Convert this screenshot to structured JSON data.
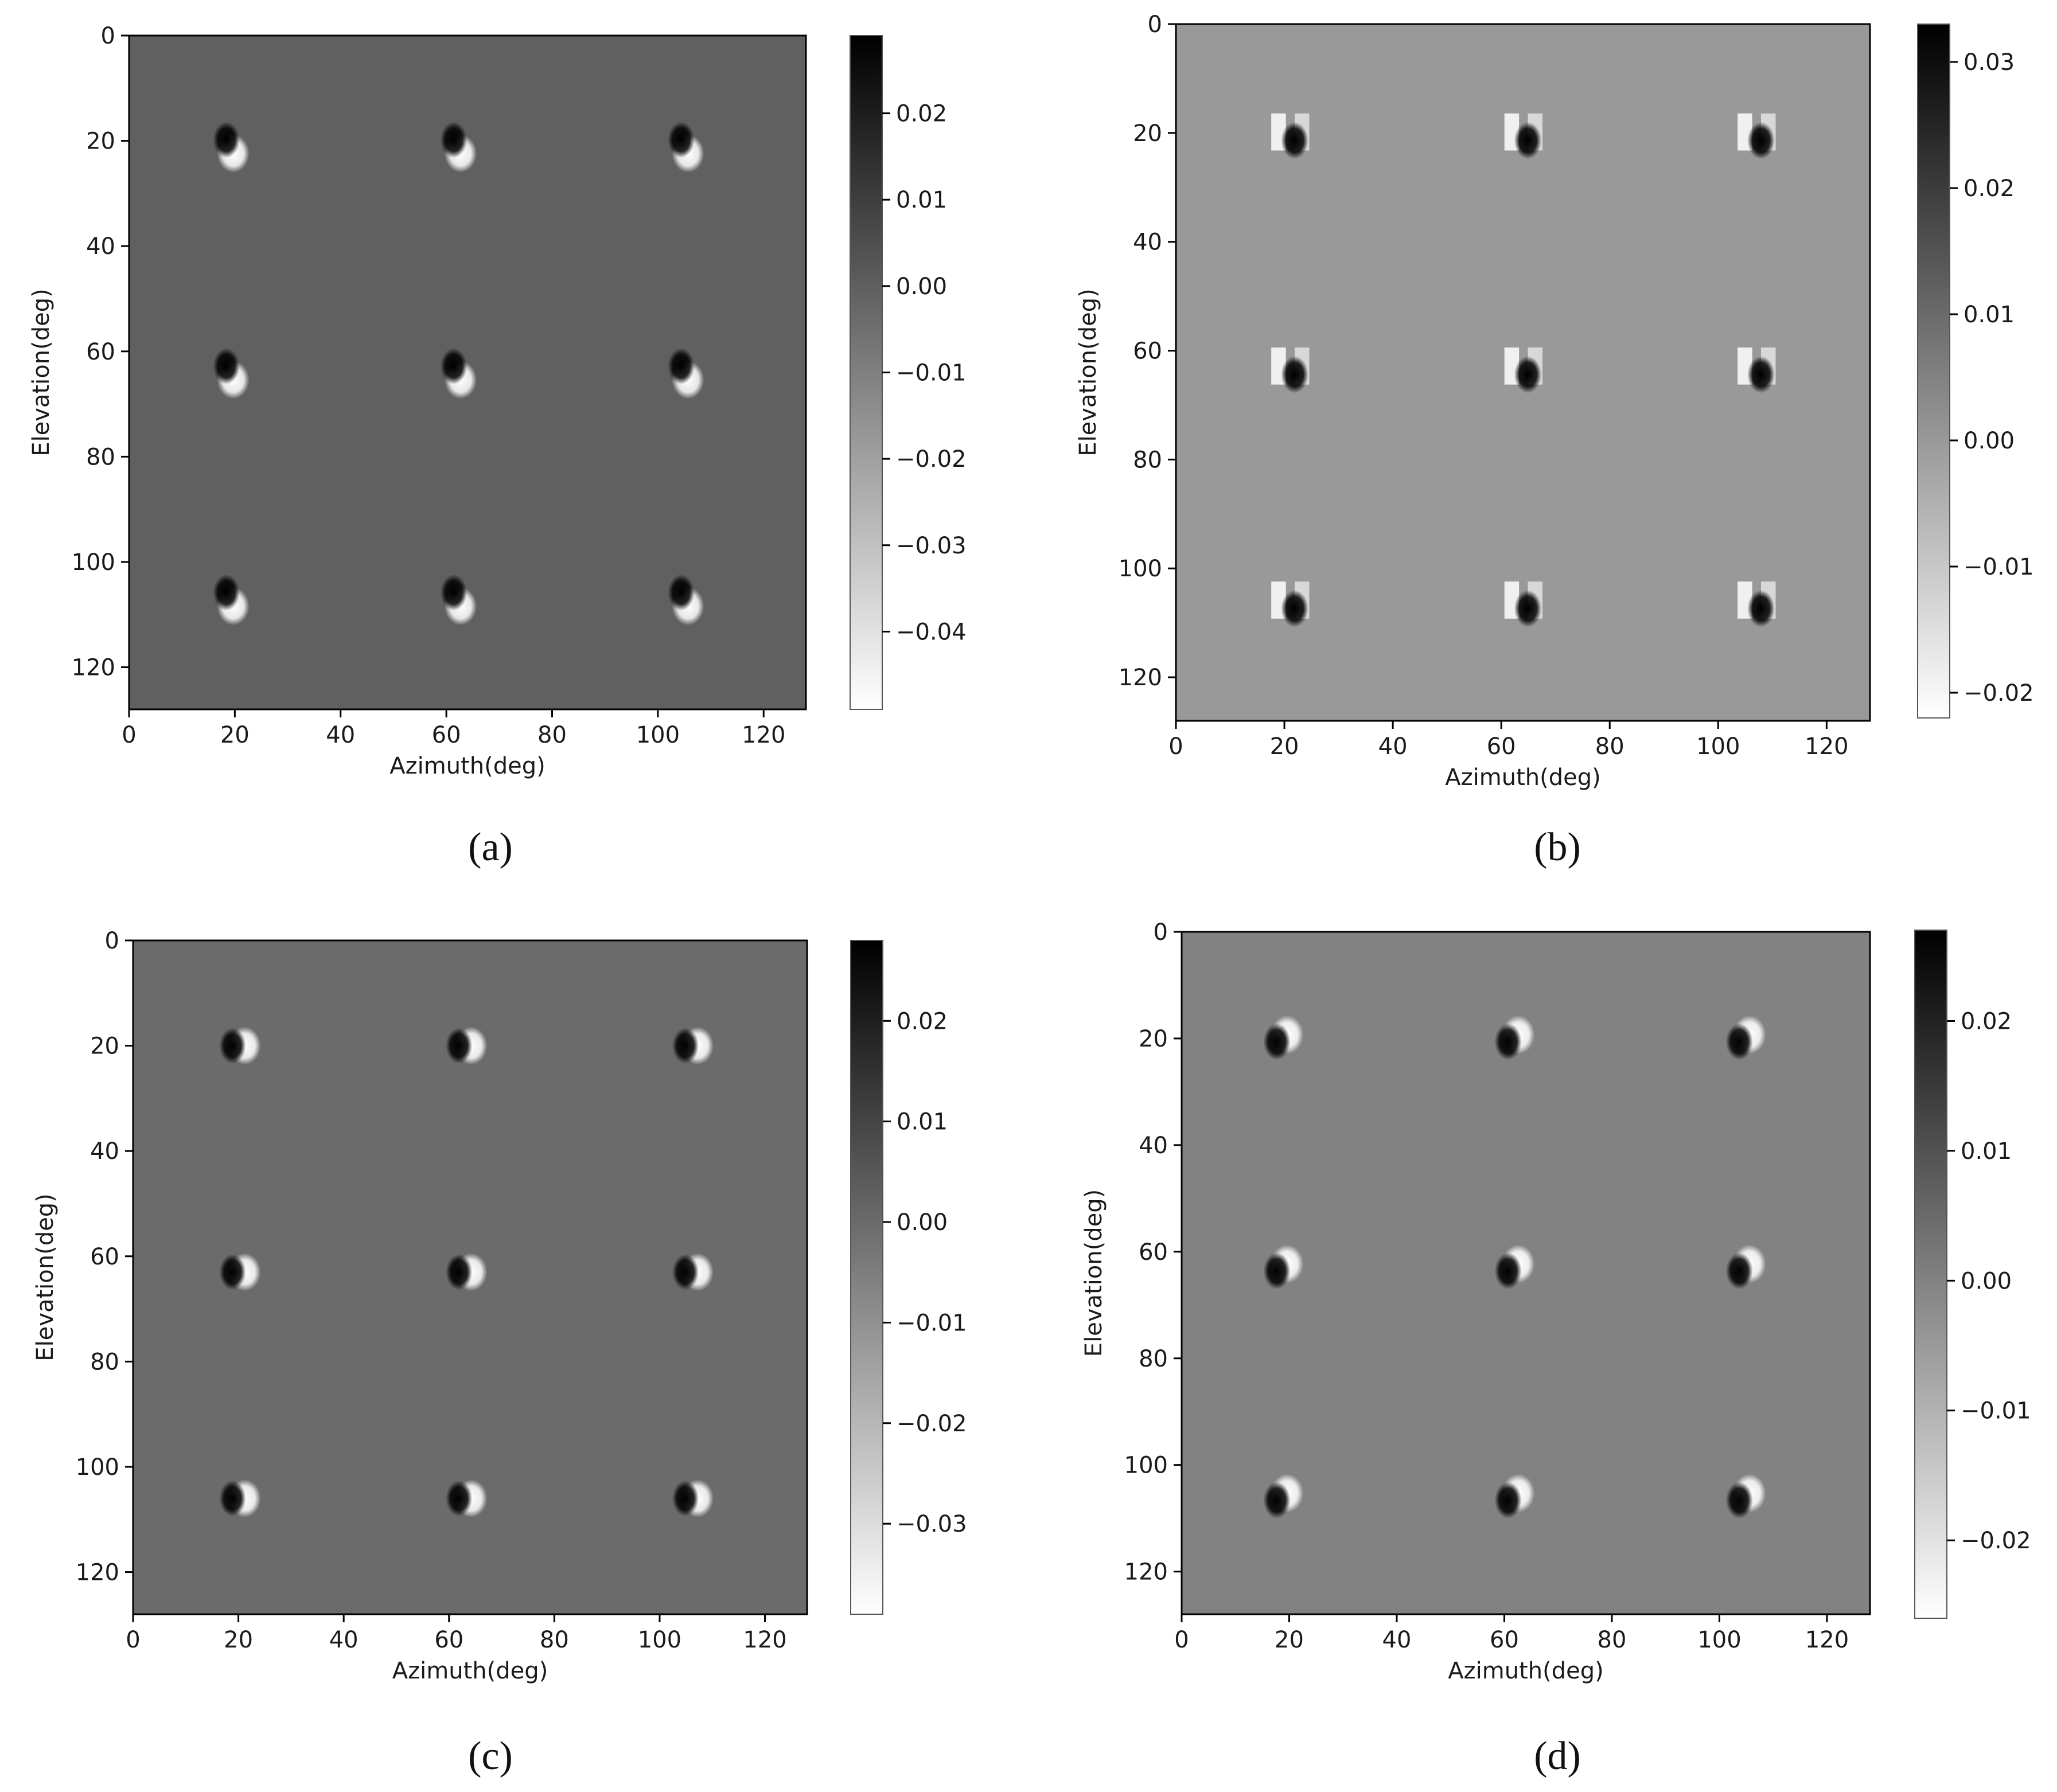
{
  "chart_data": [
    {
      "type": "heatmap",
      "panel_label": "(a)",
      "xlabel": "Azimuth(deg)",
      "ylabel": "Elevation(deg)",
      "xlim": [
        0,
        128
      ],
      "ylim": [
        128,
        0
      ],
      "x_ticks": [
        "0",
        "20",
        "40",
        "60",
        "80",
        "100",
        "120"
      ],
      "y_ticks": [
        "0",
        "20",
        "40",
        "60",
        "80",
        "100",
        "120"
      ],
      "background_value": -0.0005,
      "pattern": "dark-top-left, light-bottom-right",
      "sources": [
        {
          "az": 19,
          "el": 21
        },
        {
          "az": 62,
          "el": 21
        },
        {
          "az": 105,
          "el": 21
        },
        {
          "az": 19,
          "el": 64
        },
        {
          "az": 62,
          "el": 64
        },
        {
          "az": 105,
          "el": 64
        },
        {
          "az": 19,
          "el": 107
        },
        {
          "az": 62,
          "el": 107
        },
        {
          "az": 105,
          "el": 107
        }
      ],
      "colorbar": {
        "min": -0.049,
        "max": 0.029,
        "tick_values": [
          0.02,
          0.01,
          0.0,
          -0.01,
          -0.02,
          -0.03,
          -0.04
        ],
        "tick_labels": [
          "0.02",
          "0.01",
          "0.00",
          "−0.01",
          "−0.02",
          "−0.03",
          "−0.04"
        ],
        "colormap": "gray_r"
      }
    },
    {
      "type": "heatmap",
      "panel_label": "(b)",
      "xlabel": "Azimuth(deg)",
      "ylabel": "Elevation(deg)",
      "xlim": [
        0,
        128
      ],
      "ylim": [
        128,
        0
      ],
      "x_ticks": [
        "0",
        "20",
        "40",
        "60",
        "80",
        "100",
        "120"
      ],
      "y_ticks": [
        "0",
        "20",
        "40",
        "60",
        "80",
        "100",
        "120"
      ],
      "background_value": 0.0,
      "pattern": "light-left, dark-bottom-right",
      "sources": [
        {
          "az": 21,
          "el": 20
        },
        {
          "az": 64,
          "el": 20
        },
        {
          "az": 107,
          "el": 20
        },
        {
          "az": 21,
          "el": 63
        },
        {
          "az": 64,
          "el": 63
        },
        {
          "az": 107,
          "el": 63
        },
        {
          "az": 21,
          "el": 106
        },
        {
          "az": 64,
          "el": 106
        },
        {
          "az": 107,
          "el": 106
        }
      ],
      "colorbar": {
        "min": -0.022,
        "max": 0.033,
        "tick_values": [
          0.03,
          0.02,
          0.01,
          0.0,
          -0.01,
          -0.02
        ],
        "tick_labels": [
          "0.03",
          "0.02",
          "0.01",
          "0.00",
          "−0.01",
          "−0.02"
        ],
        "colormap": "gray_r"
      }
    },
    {
      "type": "heatmap",
      "panel_label": "(c)",
      "xlabel": "Azimuth(deg)",
      "ylabel": "Elevation(deg)",
      "xlim": [
        0,
        128
      ],
      "ylim": [
        128,
        0
      ],
      "x_ticks": [
        "0",
        "20",
        "40",
        "60",
        "80",
        "100",
        "120"
      ],
      "y_ticks": [
        "0",
        "20",
        "40",
        "60",
        "80",
        "100",
        "120"
      ],
      "background_value": 0.0,
      "pattern": "dark-left, light-right",
      "sources": [
        {
          "az": 20,
          "el": 20
        },
        {
          "az": 63,
          "el": 20
        },
        {
          "az": 106,
          "el": 20
        },
        {
          "az": 20,
          "el": 63
        },
        {
          "az": 63,
          "el": 63
        },
        {
          "az": 106,
          "el": 63
        },
        {
          "az": 20,
          "el": 106
        },
        {
          "az": 63,
          "el": 106
        },
        {
          "az": 106,
          "el": 106
        }
      ],
      "colorbar": {
        "min": -0.039,
        "max": 0.028,
        "tick_values": [
          0.02,
          0.01,
          0.0,
          -0.01,
          -0.02,
          -0.03
        ],
        "tick_labels": [
          "0.02",
          "0.01",
          "0.00",
          "−0.01",
          "−0.02",
          "−0.03"
        ],
        "colormap": "gray_r"
      }
    },
    {
      "type": "heatmap",
      "panel_label": "(d)",
      "xlabel": "Azimuth(deg)",
      "ylabel": "Elevation(deg)",
      "xlim": [
        0,
        128
      ],
      "ylim": [
        128,
        0
      ],
      "x_ticks": [
        "0",
        "20",
        "40",
        "60",
        "80",
        "100",
        "120"
      ],
      "y_ticks": [
        "0",
        "20",
        "40",
        "60",
        "80",
        "100",
        "120"
      ],
      "background_value": 0.0,
      "pattern": "dark-left-center, light-ring",
      "sources": [
        {
          "az": 19,
          "el": 20
        },
        {
          "az": 62,
          "el": 20
        },
        {
          "az": 105,
          "el": 20
        },
        {
          "az": 19,
          "el": 63
        },
        {
          "az": 62,
          "el": 63
        },
        {
          "az": 105,
          "el": 63
        },
        {
          "az": 19,
          "el": 106
        },
        {
          "az": 62,
          "el": 106
        },
        {
          "az": 105,
          "el": 106
        }
      ],
      "colorbar": {
        "min": -0.026,
        "max": 0.027,
        "tick_values": [
          0.02,
          0.01,
          0.0,
          -0.01,
          -0.02
        ],
        "tick_labels": [
          "0.02",
          "0.01",
          "0.00",
          "−0.01",
          "−0.02"
        ],
        "colormap": "gray_r"
      }
    }
  ]
}
